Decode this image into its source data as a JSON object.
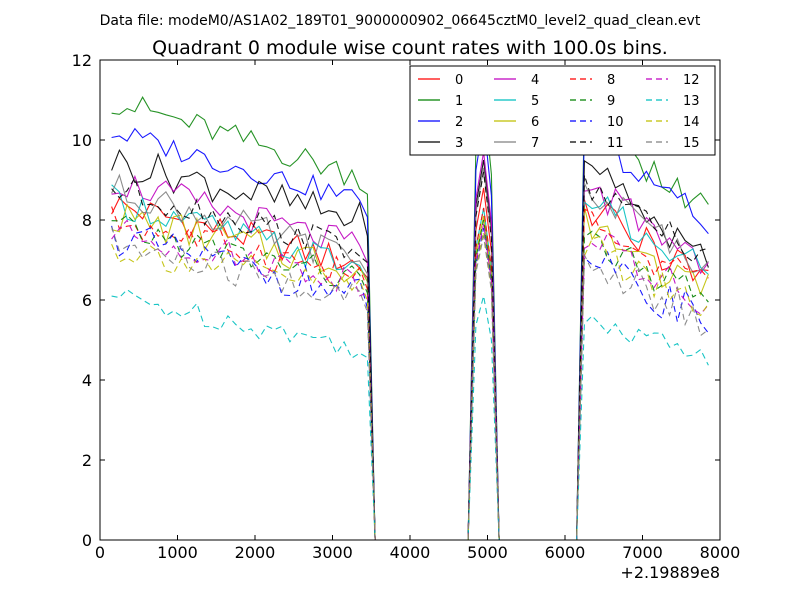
{
  "chart_data": {
    "type": "line",
    "suptitle": "Data file: modeM0/AS1A02_189T01_9000000902_06645cztM0_level2_quad_clean.evt",
    "title": "Quadrant 0 module wise count rates with 100.0s bins.",
    "xlabel": "",
    "ylabel": "",
    "x_offset_label": "+2.19889e8",
    "xlim": [
      0,
      8000
    ],
    "ylim": [
      0,
      12
    ],
    "xticks": [
      0,
      1000,
      2000,
      3000,
      4000,
      5000,
      6000,
      7000,
      8000
    ],
    "yticks": [
      0,
      2,
      4,
      6,
      8,
      10,
      12
    ],
    "x_tick_labels": [
      "0",
      "1000",
      "2000",
      "3000",
      "4000",
      "5000",
      "6000",
      "7000",
      "8000"
    ],
    "y_tick_labels": [
      "0",
      "2",
      "4",
      "6",
      "8",
      "10",
      "12"
    ],
    "legend_position": "top-right",
    "legend_columns": 4,
    "x": [
      150,
      250,
      350,
      450,
      550,
      650,
      750,
      850,
      950,
      1050,
      1150,
      1250,
      1350,
      1450,
      1550,
      1650,
      1750,
      1850,
      1950,
      2050,
      2150,
      2250,
      2350,
      2450,
      2550,
      2650,
      2750,
      2850,
      2950,
      3050,
      3150,
      3250,
      3350,
      3450,
      3550,
      3650,
      3750,
      3850,
      3950,
      4050,
      4150,
      4250,
      4350,
      4450,
      4550,
      4650,
      4750,
      4850,
      4950,
      5050,
      5150,
      5250,
      5350,
      5450,
      5550,
      5650,
      5750,
      5850,
      5950,
      6050,
      6150,
      6250,
      6350,
      6450,
      6550,
      6650,
      6750,
      6850,
      6950,
      7050,
      7150,
      7250,
      7350,
      7450,
      7550,
      7650,
      7750,
      7850
    ],
    "series": [
      {
        "name": "0",
        "color": "#ff0000",
        "dash": "solid",
        "base": 8.4,
        "end": 6.9,
        "amp": 0.4,
        "peak": 8.8,
        "post": 8.3
      },
      {
        "name": "1",
        "color": "#008000",
        "dash": "solid",
        "base": 11.0,
        "end": 9.1,
        "amp": 0.35,
        "peak": 11.15,
        "post": 10.5
      },
      {
        "name": "2",
        "color": "#0000ff",
        "dash": "solid",
        "base": 10.2,
        "end": 8.5,
        "amp": 0.3,
        "peak": 10.5,
        "post": 10.2
      },
      {
        "name": "3",
        "color": "#000000",
        "dash": "solid",
        "base": 9.5,
        "end": 8.0,
        "amp": 0.45,
        "peak": 9.5,
        "post": 9.2
      },
      {
        "name": "4",
        "color": "#bf00bf",
        "dash": "solid",
        "base": 9.0,
        "end": 7.3,
        "amp": 0.4,
        "peak": 9.7,
        "post": 8.9
      },
      {
        "name": "5",
        "color": "#00bfbf",
        "dash": "solid",
        "base": 8.5,
        "end": 6.8,
        "amp": 0.4,
        "peak": 8.3,
        "post": 8.5
      },
      {
        "name": "6",
        "color": "#bfbf00",
        "dash": "solid",
        "base": 8.1,
        "end": 6.8,
        "amp": 0.45,
        "peak": 8.1,
        "post": 7.9
      },
      {
        "name": "7",
        "color": "#808080",
        "dash": "solid",
        "base": 8.8,
        "end": 7.0,
        "amp": 0.4,
        "peak": 9.3,
        "post": 8.8
      },
      {
        "name": "8",
        "color": "#ff0000",
        "dash": "dashed",
        "base": 8.0,
        "end": 6.6,
        "amp": 0.4,
        "peak": 8.3,
        "post": 8.0
      },
      {
        "name": "9",
        "color": "#008000",
        "dash": "dashed",
        "base": 7.8,
        "end": 6.5,
        "amp": 0.4,
        "peak": 8.0,
        "post": 7.6
      },
      {
        "name": "10",
        "color": "#0000ff",
        "dash": "dashed",
        "base": 7.6,
        "end": 6.1,
        "amp": 0.45,
        "peak": 7.8,
        "post": 7.0
      },
      {
        "name": "11",
        "color": "#000000",
        "dash": "dashed",
        "base": 8.8,
        "end": 7.3,
        "amp": 0.4,
        "peak": 9.2,
        "post": 8.9
      },
      {
        "name": "12",
        "color": "#bf00bf",
        "dash": "dashed",
        "base": 7.7,
        "end": 6.5,
        "amp": 0.4,
        "peak": 7.9,
        "post": 7.6
      },
      {
        "name": "13",
        "color": "#00bfbf",
        "dash": "dashed",
        "base": 6.1,
        "end": 4.8,
        "amp": 0.3,
        "peak": 6.1,
        "post": 5.7
      },
      {
        "name": "14",
        "color": "#bfbf00",
        "dash": "dashed",
        "base": 7.3,
        "end": 6.3,
        "amp": 0.4,
        "peak": 7.7,
        "post": 7.4
      },
      {
        "name": "15",
        "color": "#808080",
        "dash": "dashed",
        "base": 7.4,
        "end": 6.0,
        "amp": 0.45,
        "peak": 7.6,
        "post": 7.0
      }
    ]
  }
}
